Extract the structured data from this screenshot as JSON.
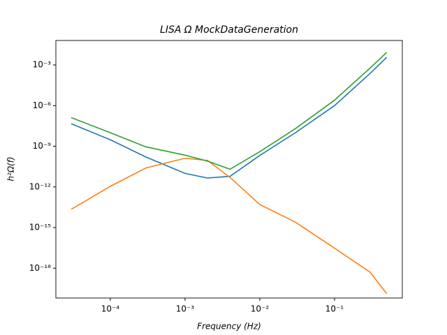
{
  "chart_data": {
    "type": "line",
    "title": "LISA Ω MockDataGeneration",
    "x_label": "Frequency  (Hz)",
    "y_label": "h²Ω(f)",
    "xscale": "log",
    "yscale": "log",
    "x": [
      3e-05,
      0.0001,
      0.0003,
      0.001,
      0.002,
      0.004,
      0.01,
      0.03,
      0.1,
      0.3,
      0.5
    ],
    "series": [
      {
        "color": "#1f77b4",
        "values": [
          4.6e-08,
          3e-09,
          1.6e-10,
          1e-11,
          4.5e-12,
          6e-12,
          2.1e-10,
          1e-08,
          1e-06,
          0.00024,
          0.0037
        ]
      },
      {
        "color": "#ff7f0e",
        "values": [
          2.2e-14,
          1.1e-12,
          2.5e-11,
          1.3e-10,
          9e-11,
          5e-12,
          5e-14,
          2.5e-15,
          3e-17,
          5e-19,
          1.3e-20
        ]
      },
      {
        "color": "#2ca02c",
        "values": [
          1.3e-07,
          1e-08,
          9e-10,
          2.2e-10,
          8e-11,
          2e-11,
          4e-10,
          2e-08,
          2.5e-06,
          0.0006,
          0.0085
        ]
      }
    ],
    "xlim": [
      1.87e-05,
      0.807
    ],
    "ylim": [
      6.3e-21,
      0.064
    ],
    "xticks": [
      {
        "value": 0.0001,
        "label": "10⁻⁴"
      },
      {
        "value": 0.001,
        "label": "10⁻³"
      },
      {
        "value": 0.01,
        "label": "10⁻²"
      },
      {
        "value": 0.1,
        "label": "10⁻¹"
      }
    ],
    "yticks": [
      {
        "value": 1e-18,
        "label": "10⁻¹⁸"
      },
      {
        "value": 1e-15,
        "label": "10⁻¹⁵"
      },
      {
        "value": 1e-12,
        "label": "10⁻¹²"
      },
      {
        "value": 1e-09,
        "label": "10⁻⁹"
      },
      {
        "value": 1e-06,
        "label": "10⁻⁶"
      },
      {
        "value": 0.001,
        "label": "10⁻³"
      }
    ]
  }
}
